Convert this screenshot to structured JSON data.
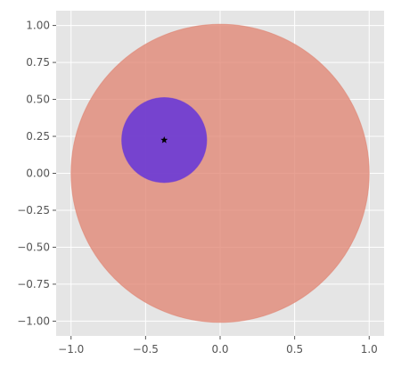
{
  "chart_data": {
    "type": "scatter",
    "title": "",
    "xlabel": "",
    "ylabel": "",
    "xlim": [
      -1.1,
      1.1
    ],
    "ylim": [
      -1.1,
      1.1
    ],
    "grid": true,
    "aspect": "equal",
    "x_ticks": [
      -1.0,
      -0.5,
      0.0,
      0.5,
      1.0
    ],
    "x_tick_labels": [
      "−1.0",
      "−0.5",
      "0.0",
      "0.5",
      "1.0"
    ],
    "y_ticks": [
      1.0,
      0.75,
      0.5,
      0.25,
      0.0,
      -0.25,
      -0.5,
      -0.75,
      -1.0
    ],
    "y_tick_labels": [
      "1.00",
      "0.75",
      "0.50",
      "0.25",
      "0.00",
      "−0.25",
      "−0.50",
      "−0.75",
      "−1.00"
    ],
    "shapes": [
      {
        "kind": "circle",
        "cx": 0.0,
        "cy": 0.0,
        "r": 1.0,
        "color": "#e0826f",
        "opacity": 0.75
      },
      {
        "kind": "circle",
        "cx": -0.375,
        "cy": 0.225,
        "r": 0.285,
        "color": "#6a3ad6",
        "opacity": 0.9
      }
    ],
    "points": [
      {
        "x": -0.375,
        "y": 0.225,
        "marker": "star",
        "color": "#000000"
      }
    ],
    "colors": {
      "plot_background": "#e5e5e5",
      "grid": "#ffffff",
      "tick_text": "#555555"
    }
  }
}
